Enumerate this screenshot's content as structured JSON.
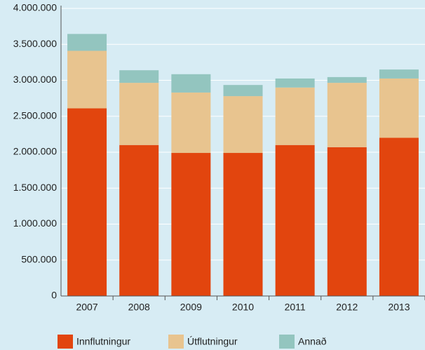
{
  "chart_data": {
    "type": "stacked_bar",
    "categories": [
      "2007",
      "2008",
      "2009",
      "2010",
      "2011",
      "2012",
      "2013"
    ],
    "series": [
      {
        "name": "Innflutningur",
        "color": "#e2450e",
        "values": [
          2610000,
          2100000,
          1990000,
          1990000,
          2100000,
          2070000,
          2200000
        ]
      },
      {
        "name": "Útflutningur",
        "color": "#e8c48f",
        "values": [
          800000,
          865000,
          840000,
          790000,
          800000,
          895000,
          825000
        ]
      },
      {
        "name": "Annað",
        "color": "#93c5bf",
        "values": [
          235000,
          175000,
          255000,
          155000,
          125000,
          80000,
          125000
        ]
      }
    ],
    "ylim": [
      0,
      4000000
    ],
    "yticks": [
      0,
      {
        "value": 500000,
        "label": "500.000"
      },
      {
        "value": 1000000,
        "label": "1.000.000"
      },
      {
        "value": 1500000,
        "label": "1.500.000"
      },
      {
        "value": 2000000,
        "label": "2.000.000"
      },
      {
        "value": 2500000,
        "label": "2.500.000"
      },
      {
        "value": 3000000,
        "label": "3.000.000"
      },
      {
        "value": 3500000,
        "label": "3.500.000"
      },
      {
        "value": 4000000,
        "label": "4.000.000"
      }
    ],
    "grid": true,
    "legend": "bottom"
  }
}
